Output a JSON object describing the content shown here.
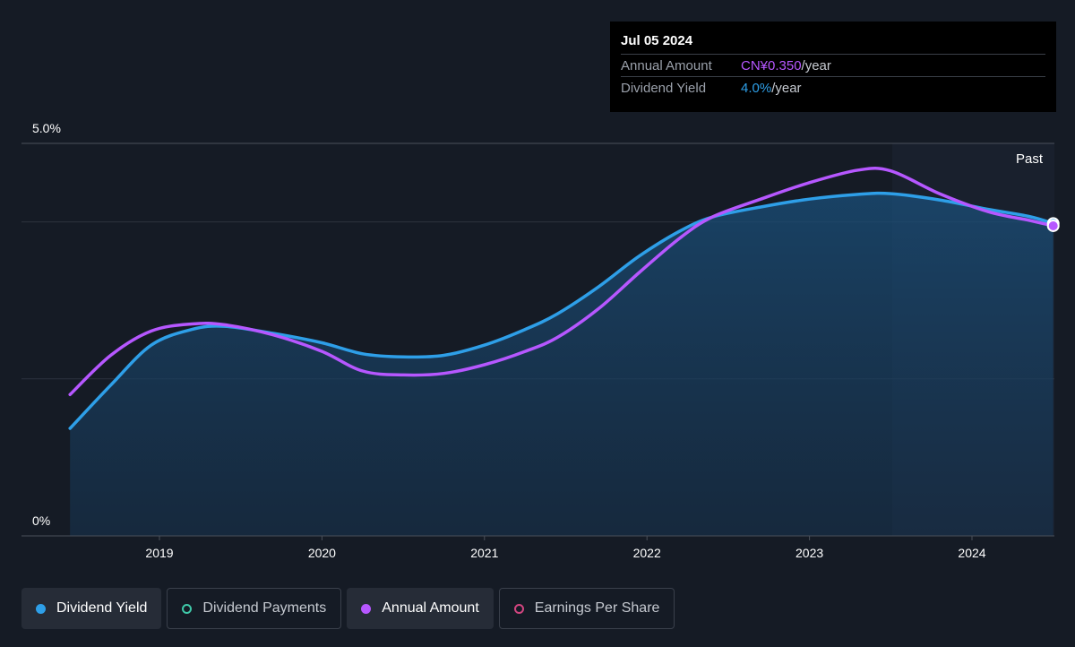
{
  "tooltip": {
    "date": "Jul 05 2024",
    "amount_label": "Annual Amount",
    "amount_value": "CN¥0.350",
    "amount_suffix": "/year",
    "yield_label": "Dividend Yield",
    "yield_value": "4.0%",
    "yield_suffix": "/year"
  },
  "legend": [
    {
      "label": "Dividend Yield",
      "color": "#2e9fe8",
      "style": "filled",
      "active": true
    },
    {
      "label": "Dividend Payments",
      "color": "#3fc8a8",
      "style": "hollow",
      "active": false
    },
    {
      "label": "Annual Amount",
      "color": "#b657ff",
      "style": "filled",
      "active": true
    },
    {
      "label": "Earnings Per Share",
      "color": "#d0457f",
      "style": "hollow",
      "active": false
    }
  ],
  "chart_data": {
    "type": "line",
    "x_tick_labels": [
      "2019",
      "2020",
      "2021",
      "2022",
      "2023",
      "2024"
    ],
    "y_tick_labels": [
      "5.0%",
      "0%"
    ],
    "ylim": [
      0,
      5.0
    ],
    "past_label": "Past",
    "grid": true,
    "series": [
      {
        "name": "Dividend Yield",
        "color": "#2e9fe8",
        "area": true,
        "x": [
          2018.45,
          2018.7,
          2018.95,
          2019.2,
          2019.4,
          2019.7,
          2020.0,
          2020.25,
          2020.5,
          2020.75,
          2021.0,
          2021.25,
          2021.45,
          2021.7,
          2021.95,
          2022.2,
          2022.4,
          2022.7,
          2023.0,
          2023.3,
          2023.5,
          2023.8,
          2024.1,
          2024.35,
          2024.5
        ],
        "y": [
          1.37,
          1.92,
          2.43,
          2.63,
          2.67,
          2.58,
          2.46,
          2.32,
          2.28,
          2.3,
          2.43,
          2.63,
          2.83,
          3.17,
          3.56,
          3.88,
          4.06,
          4.19,
          4.29,
          4.35,
          4.36,
          4.28,
          4.16,
          4.07,
          3.98
        ]
      },
      {
        "name": "Annual Amount",
        "color": "#b657ff",
        "area": false,
        "x": [
          2018.45,
          2018.7,
          2018.95,
          2019.2,
          2019.4,
          2019.7,
          2020.0,
          2020.25,
          2020.5,
          2020.75,
          2021.0,
          2021.25,
          2021.45,
          2021.7,
          2021.95,
          2022.2,
          2022.4,
          2022.7,
          2023.0,
          2023.3,
          2023.5,
          2023.8,
          2024.1,
          2024.35,
          2024.5
        ],
        "y": [
          1.8,
          2.3,
          2.61,
          2.7,
          2.69,
          2.56,
          2.35,
          2.1,
          2.05,
          2.07,
          2.18,
          2.35,
          2.53,
          2.89,
          3.35,
          3.79,
          4.06,
          4.29,
          4.5,
          4.66,
          4.65,
          4.36,
          4.13,
          4.02,
          3.95
        ]
      }
    ]
  }
}
